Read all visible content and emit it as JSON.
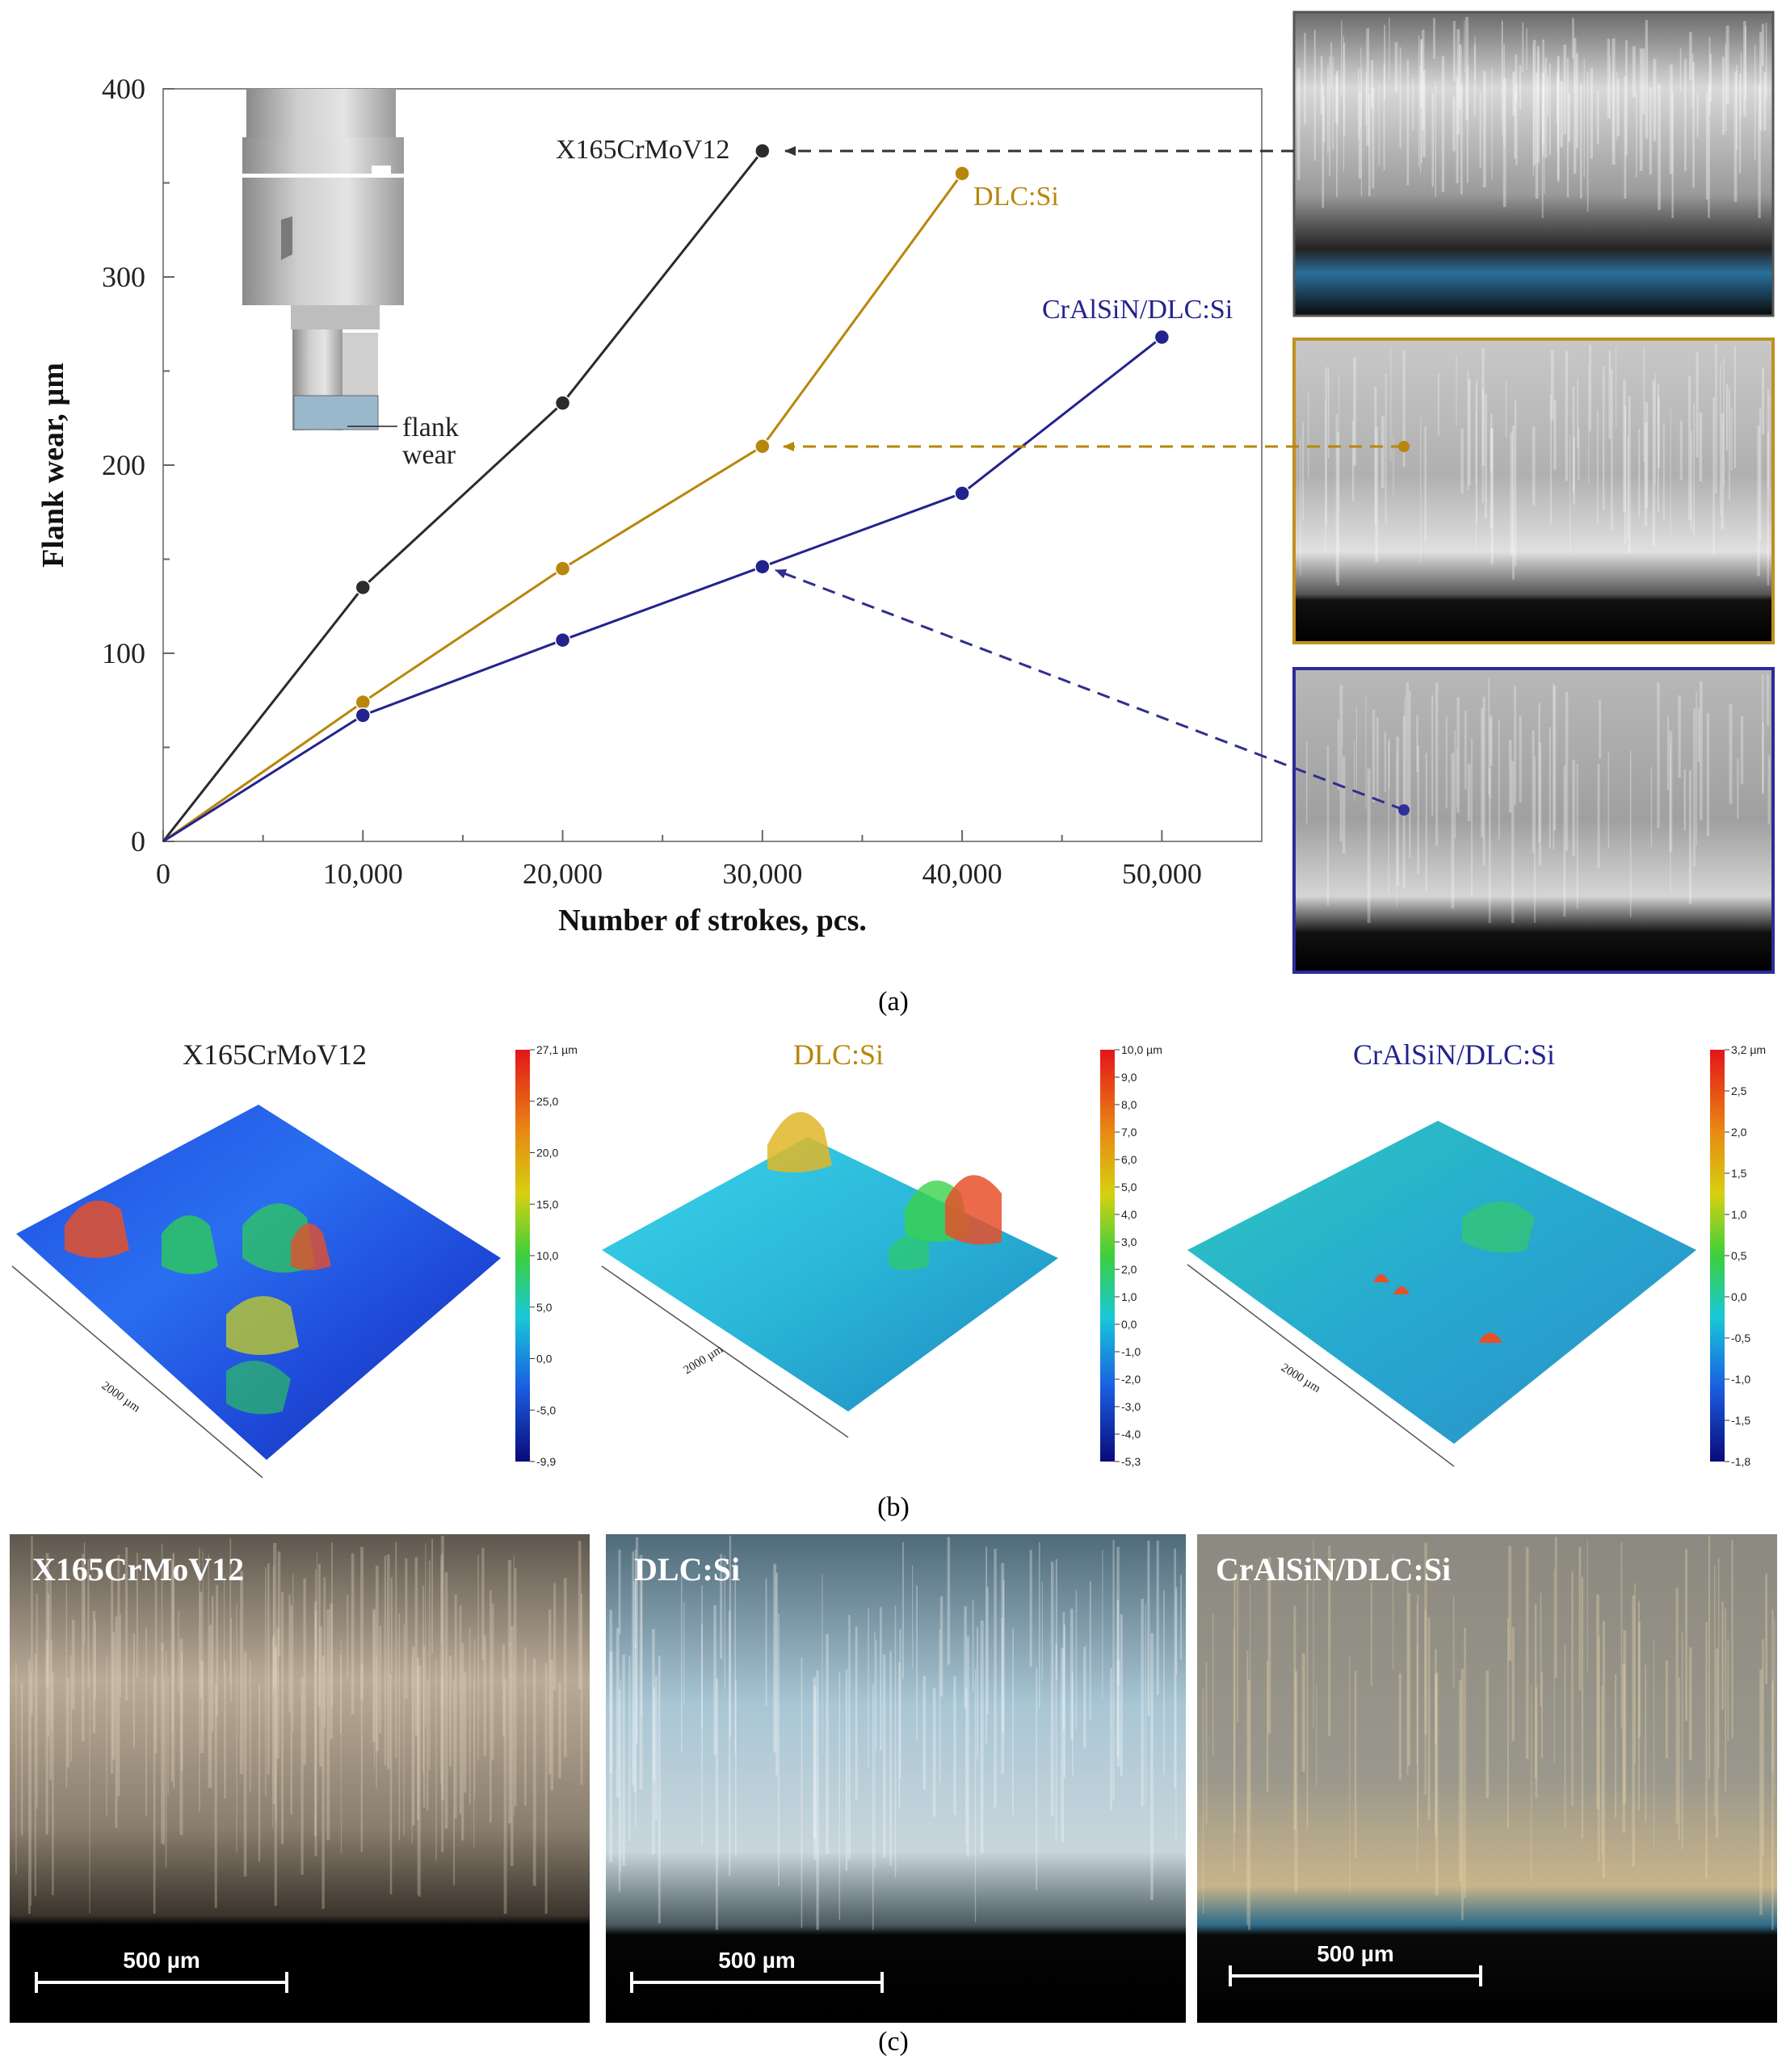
{
  "chart_data": {
    "type": "line",
    "xlabel": "Number of strokes, pcs.",
    "ylabel": "Flank wear, µm",
    "xlim": [
      0,
      55000
    ],
    "ylim": [
      0,
      400
    ],
    "x_ticks": [
      0,
      10000,
      20000,
      30000,
      40000,
      50000
    ],
    "x_tick_labels": [
      "0",
      "10,000",
      "20,000",
      "30,000",
      "40,000",
      "50,000"
    ],
    "y_ticks": [
      0,
      100,
      200,
      300,
      400
    ],
    "y_tick_labels": [
      "0",
      "100",
      "200",
      "300",
      "400"
    ],
    "grid": false,
    "series": [
      {
        "name": "X165CrMoV12",
        "color": "#2b2b2b",
        "x": [
          0,
          10000,
          20000,
          30000
        ],
        "y": [
          0,
          135,
          233,
          367
        ]
      },
      {
        "name": "DLC:Si",
        "color": "#b8860b",
        "x": [
          0,
          10000,
          20000,
          30000,
          40000
        ],
        "y": [
          0,
          74,
          145,
          210,
          355
        ]
      },
      {
        "name": "CrAlSiN/DLC:Si",
        "color": "#23238e",
        "x": [
          0,
          10000,
          20000,
          30000,
          40000,
          50000
        ],
        "y": [
          0,
          67,
          107,
          146,
          185,
          268
        ]
      }
    ],
    "annotation": {
      "line1": "flank",
      "line2": "wear"
    }
  },
  "panels": {
    "a": "(a)",
    "b": "(b)",
    "c": "(c)"
  },
  "surface_maps": [
    {
      "title": "X165CrMoV12",
      "title_color": "#222222",
      "axis_label": "2000 µm",
      "scale_ticks": [
        "27,1 µm",
        "25,0",
        "20,0",
        "15,0",
        "10,0",
        "5,0",
        "0,0",
        "-5,0",
        "-9,9"
      ]
    },
    {
      "title": "DLC:Si",
      "title_color": "#b8860b",
      "axis_label": "2000 µm",
      "scale_ticks": [
        "10,0 µm",
        "9,0",
        "8,0",
        "7,0",
        "6,0",
        "5,0",
        "4,0",
        "3,0",
        "2,0",
        "1,0",
        "0,0",
        "-1,0",
        "-2,0",
        "-3,0",
        "-4,0",
        "-5,3"
      ]
    },
    {
      "title": "CrAlSiN/DLC:Si",
      "title_color": "#23238e",
      "axis_label": "2000 µm",
      "scale_ticks": [
        "3,2 µm",
        "2,5",
        "2,0",
        "1,5",
        "1,0",
        "0,5",
        "0,0",
        "-0,5",
        "-1,0",
        "-1,5",
        "-1,8"
      ]
    }
  ],
  "micrographs": [
    {
      "title": "X165CrMoV12",
      "scale": "500 µm"
    },
    {
      "title": "DLC:Si",
      "scale": "500 µm"
    },
    {
      "title": "CrAlSiN/DLC:Si",
      "scale": "500 µm"
    }
  ]
}
